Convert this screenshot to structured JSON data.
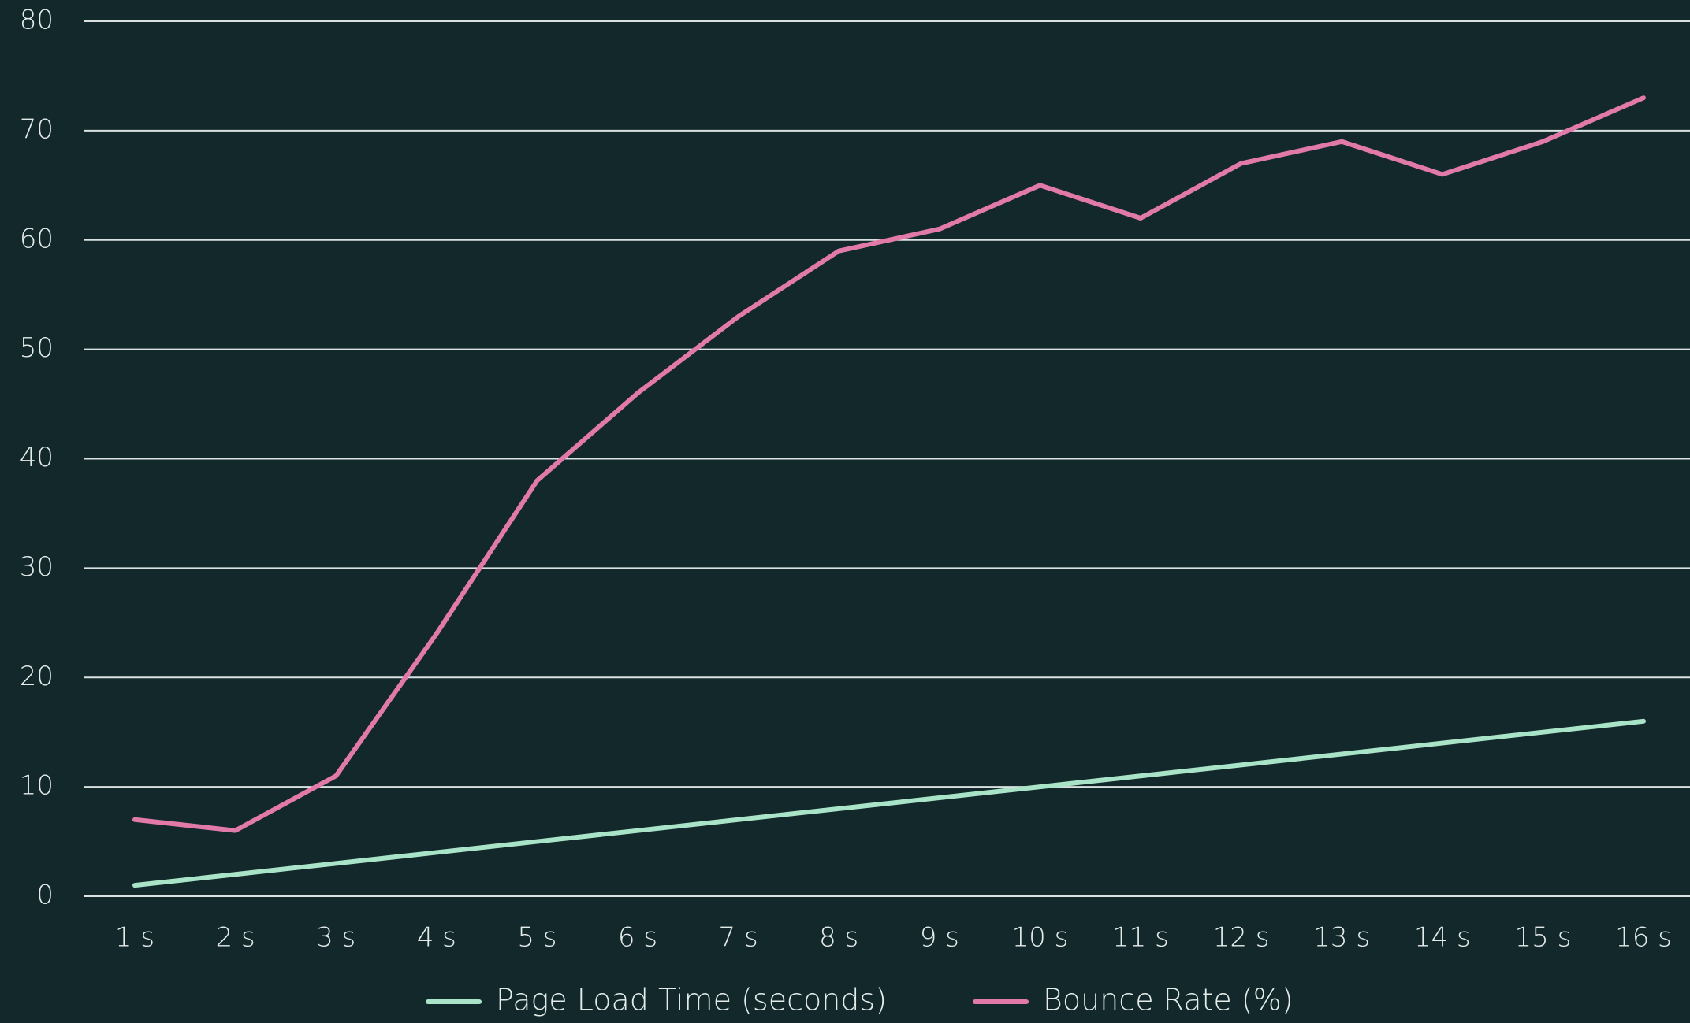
{
  "chart_data": {
    "type": "line",
    "categories": [
      "1 s",
      "2 s",
      "3 s",
      "4 s",
      "5 s",
      "6 s",
      "7 s",
      "8 s",
      "9 s",
      "10 s",
      "11 s",
      "12 s",
      "13 s",
      "14 s",
      "15 s",
      "16 s"
    ],
    "series": [
      {
        "name": "Page Load Time (seconds)",
        "color": "#a9e4c8",
        "values": [
          1,
          2,
          3,
          4,
          5,
          6,
          7,
          8,
          9,
          10,
          11,
          12,
          13,
          14,
          15,
          16
        ]
      },
      {
        "name": "Bounce Rate (%)",
        "color": "#e27aa9",
        "values": [
          7,
          6,
          11,
          24,
          38,
          46,
          53,
          59,
          61,
          65,
          62,
          67,
          69,
          66,
          69,
          73
        ]
      }
    ],
    "ylim": [
      0,
      80
    ],
    "yticks": [
      0,
      10,
      20,
      30,
      40,
      50,
      60,
      70,
      80
    ],
    "grid": true,
    "legend": "bottom"
  }
}
